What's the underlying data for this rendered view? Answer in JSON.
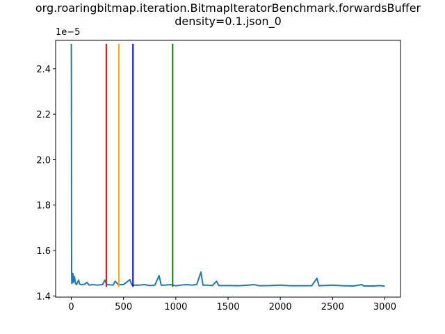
{
  "chart_data": {
    "type": "line",
    "title": "org.roaringbitmap.iteration.BitmapIteratorBenchmark.forwardsBuffer",
    "subtitle": "density=0.1.json_0",
    "xlabel": "",
    "ylabel": "",
    "y_offset_label": "1e−5",
    "xlim": [
      -150,
      3150
    ],
    "ylim": [
      1.395,
      2.525
    ],
    "x_ticks": [
      0,
      500,
      1000,
      1500,
      2000,
      2500,
      3000
    ],
    "x_tick_labels": [
      "0",
      "500",
      "1000",
      "1500",
      "2000",
      "2500",
      "3000"
    ],
    "y_ticks": [
      1.4,
      1.6,
      1.8,
      2.0,
      2.2,
      2.4
    ],
    "y_tick_labels": [
      "1.4",
      "1.6",
      "1.8",
      "2.0",
      "2.2",
      "2.4"
    ],
    "grid": false,
    "series": [
      {
        "color": "#1f77b4",
        "points": [
          [
            0,
            2.51
          ],
          [
            1,
            2.4
          ],
          [
            2,
            1.8
          ],
          [
            3,
            1.5
          ],
          [
            5,
            1.455
          ],
          [
            10,
            1.46
          ],
          [
            15,
            1.5
          ],
          [
            20,
            1.46
          ],
          [
            30,
            1.485
          ],
          [
            40,
            1.455
          ],
          [
            50,
            1.45
          ],
          [
            70,
            1.47
          ],
          [
            80,
            1.452
          ],
          [
            100,
            1.45
          ],
          [
            130,
            1.452
          ],
          [
            150,
            1.46
          ],
          [
            170,
            1.448
          ],
          [
            200,
            1.45
          ],
          [
            250,
            1.448
          ],
          [
            300,
            1.45
          ],
          [
            320,
            1.47
          ],
          [
            340,
            1.45
          ],
          [
            400,
            1.448
          ],
          [
            420,
            1.465
          ],
          [
            450,
            1.45
          ],
          [
            500,
            1.45
          ],
          [
            560,
            1.472
          ],
          [
            580,
            1.448
          ],
          [
            650,
            1.448
          ],
          [
            700,
            1.45
          ],
          [
            750,
            1.446
          ],
          [
            800,
            1.448
          ],
          [
            840,
            1.49
          ],
          [
            860,
            1.448
          ],
          [
            900,
            1.448
          ],
          [
            950,
            1.45
          ],
          [
            1000,
            1.445
          ],
          [
            1050,
            1.448
          ],
          [
            1100,
            1.45
          ],
          [
            1150,
            1.448
          ],
          [
            1200,
            1.45
          ],
          [
            1240,
            1.505
          ],
          [
            1260,
            1.448
          ],
          [
            1300,
            1.448
          ],
          [
            1350,
            1.446
          ],
          [
            1390,
            1.465
          ],
          [
            1410,
            1.446
          ],
          [
            1500,
            1.446
          ],
          [
            1600,
            1.445
          ],
          [
            1700,
            1.448
          ],
          [
            1750,
            1.45
          ],
          [
            1800,
            1.445
          ],
          [
            1900,
            1.446
          ],
          [
            2000,
            1.448
          ],
          [
            2100,
            1.445
          ],
          [
            2200,
            1.445
          ],
          [
            2300,
            1.445
          ],
          [
            2350,
            1.478
          ],
          [
            2370,
            1.445
          ],
          [
            2500,
            1.448
          ],
          [
            2600,
            1.445
          ],
          [
            2700,
            1.444
          ],
          [
            2780,
            1.45
          ],
          [
            2800,
            1.444
          ],
          [
            2900,
            1.444
          ],
          [
            2950,
            1.446
          ],
          [
            3000,
            1.443
          ]
        ]
      }
    ],
    "vertical_lines": [
      {
        "x": 335,
        "color": "#ff0000"
      },
      {
        "x": 455,
        "color": "#ffa500"
      },
      {
        "x": 590,
        "color": "#0000ff"
      },
      {
        "x": 970,
        "color": "#008000"
      }
    ],
    "vertical_line_range": [
      1.44,
      2.51
    ]
  }
}
